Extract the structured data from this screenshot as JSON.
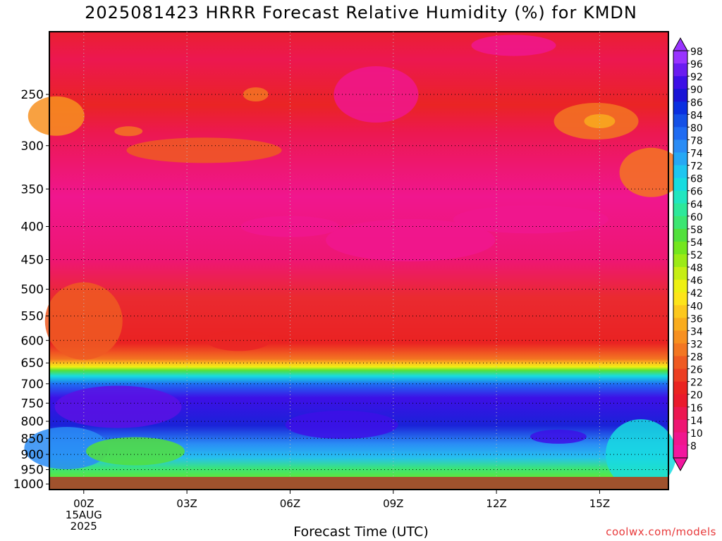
{
  "title": "2025081423 HRRR Forecast Relative Humidity (%) for KMDN",
  "xlabel": "Forecast Time (UTC)",
  "credit": "coolwx.com/models",
  "chart_data": {
    "type": "heatmap",
    "title": "2025081423 HRRR Forecast Relative Humidity (%) for KMDN",
    "xlabel": "Forecast Time (UTC)",
    "ylabel": "",
    "x_ticks": [
      {
        "t": 0,
        "label": [
          "00Z",
          "15AUG",
          "2025"
        ]
      },
      {
        "t": 3,
        "label": [
          "03Z"
        ]
      },
      {
        "t": 6,
        "label": [
          "06Z"
        ]
      },
      {
        "t": 9,
        "label": [
          "09Z"
        ]
      },
      {
        "t": 12,
        "label": [
          "12Z"
        ]
      },
      {
        "t": 15,
        "label": [
          "15Z"
        ]
      }
    ],
    "xlim": [
      -1,
      17
    ],
    "y_ticks": [
      250,
      300,
      350,
      400,
      450,
      500,
      550,
      600,
      650,
      700,
      750,
      800,
      850,
      900,
      950,
      1000
    ],
    "ylim": [
      200,
      1020
    ],
    "yscale": "log-pressure (inverted)",
    "ground_pressure": 975,
    "grid": true,
    "colorbar": {
      "labels": [
        98,
        96,
        92,
        90,
        86,
        84,
        80,
        78,
        74,
        72,
        68,
        66,
        64,
        60,
        58,
        54,
        52,
        48,
        46,
        42,
        40,
        36,
        34,
        32,
        28,
        26,
        22,
        20,
        16,
        14,
        10,
        8
      ],
      "colors": [
        "#9933ff",
        "#6a1cf0",
        "#3d0fe6",
        "#1a14d6",
        "#0a2fe0",
        "#1450e6",
        "#1f6bf2",
        "#2a8cf5",
        "#26a8f5",
        "#1ec6f0",
        "#18dce0",
        "#22e6c0",
        "#2ee89a",
        "#3ce672",
        "#52e03c",
        "#74e61e",
        "#9cea16",
        "#c6ee14",
        "#eef012",
        "#fde41a",
        "#fcc81e",
        "#f9ac1e",
        "#f79020",
        "#f37622",
        "#ef5a22",
        "#ec3e22",
        "#ea2420",
        "#ea1a2c",
        "#ec1750",
        "#ee1672",
        "#f0168e",
        "#f2169e"
      ],
      "position": "right",
      "min_arrow": true,
      "max_arrow": true
    },
    "layers": [
      {
        "p_top": 200,
        "p_bottom": 660,
        "rh_range": [
          10,
          22
        ],
        "description_colors": [
          "#f0168e",
          "#ec1750",
          "#ea2420"
        ]
      },
      {
        "p_top": 660,
        "p_bottom": 705,
        "rh_range": [
          22,
          72
        ]
      },
      {
        "p_top": 705,
        "p_bottom": 880,
        "rh_range": [
          80,
          96
        ]
      },
      {
        "p_top": 880,
        "p_bottom": 975,
        "rh_range": [
          54,
          78
        ]
      }
    ]
  }
}
